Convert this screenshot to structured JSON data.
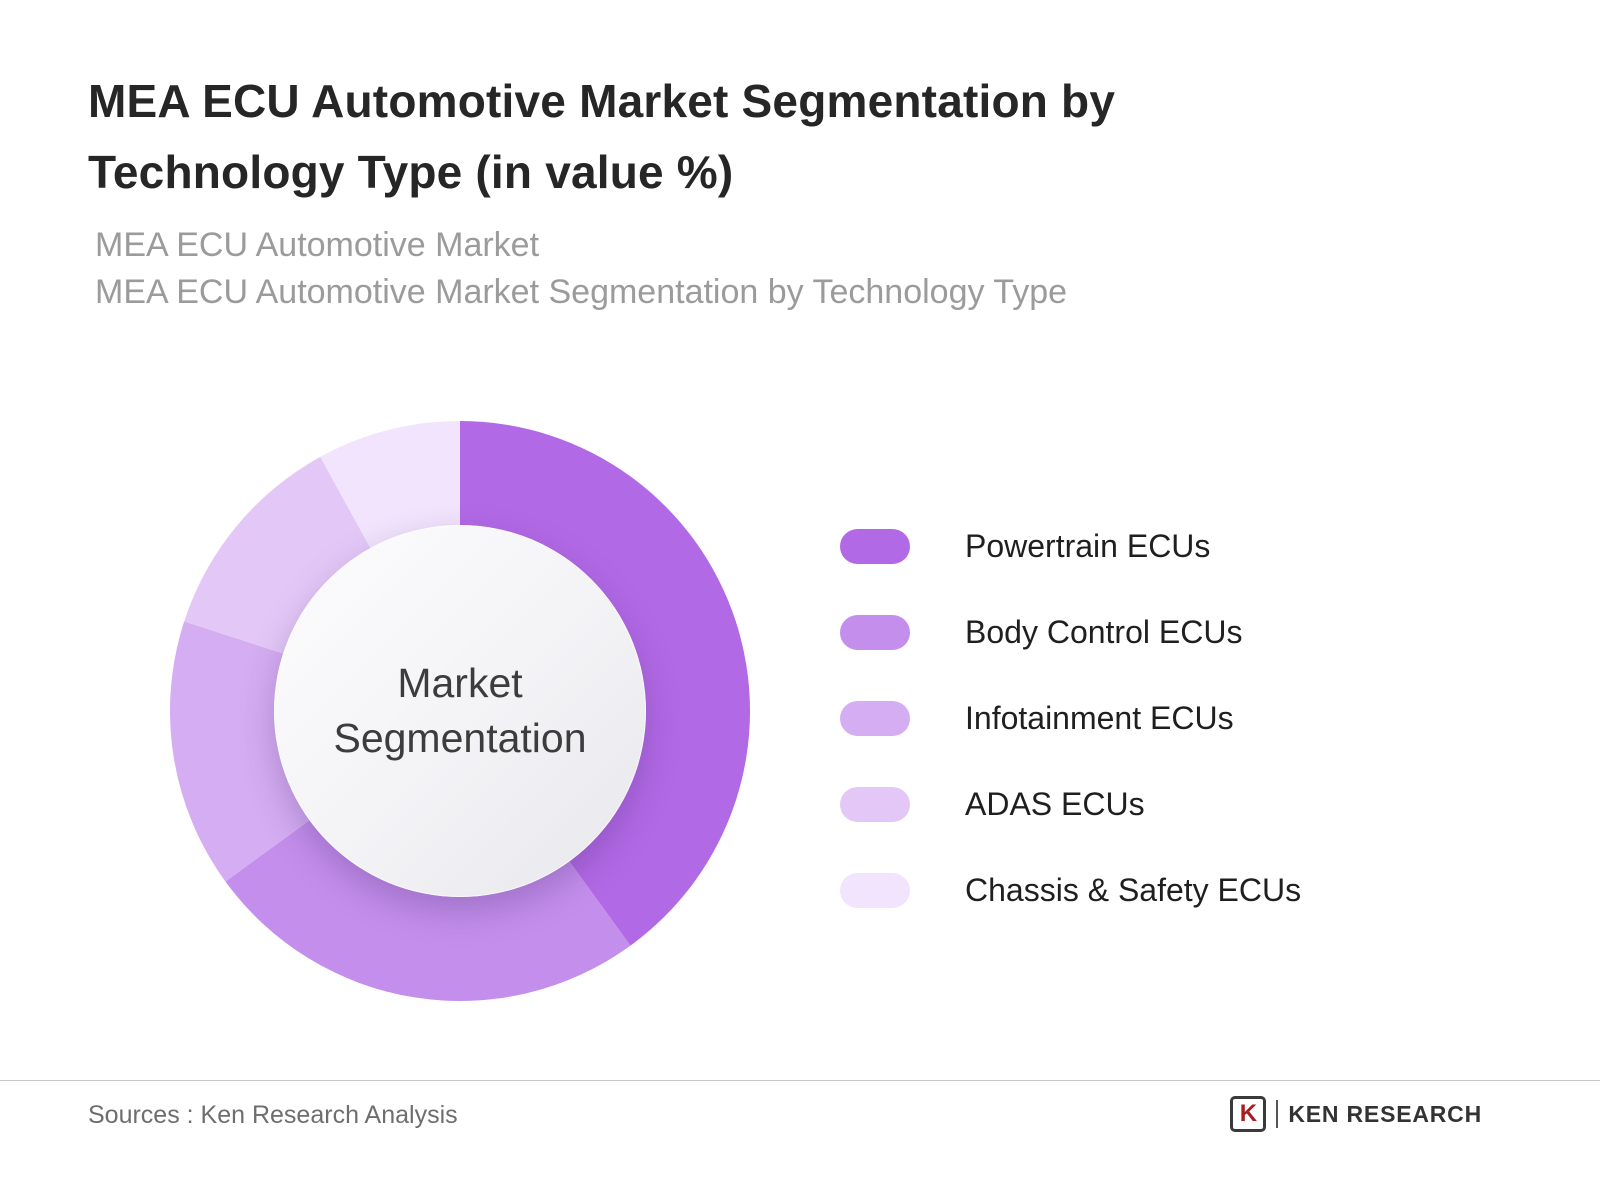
{
  "header": {
    "title": "MEA ECU Automotive Market Segmentation by Technology Type (in value %)",
    "subtitle_line1": "MEA ECU Automotive Market",
    "subtitle_line2": "MEA ECU Automotive Market Segmentation by Technology Type"
  },
  "chart_data": {
    "type": "pie",
    "variant": "donut",
    "title": "MEA ECU Automotive Market Segmentation by Technology Type (in value %)",
    "center_label": "Market Segmentation",
    "categories": [
      "Powertrain ECUs",
      "Body Control ECUs",
      "Infotainment ECUs",
      "ADAS ECUs",
      "Chassis & Safety ECUs"
    ],
    "values": [
      40,
      25,
      15,
      12,
      8
    ],
    "colors": [
      "#b269e5",
      "#c48fec",
      "#d5adf2",
      "#e3c8f7",
      "#f1e4fc"
    ],
    "start_angle_deg": 0,
    "direction": "clockwise",
    "legend_position": "right",
    "units": "value %",
    "data_labels_shown": false
  },
  "footer": {
    "sources": "Sources : Ken Research Analysis",
    "brand_initial": "K",
    "brand": "KEN RESEARCH"
  }
}
